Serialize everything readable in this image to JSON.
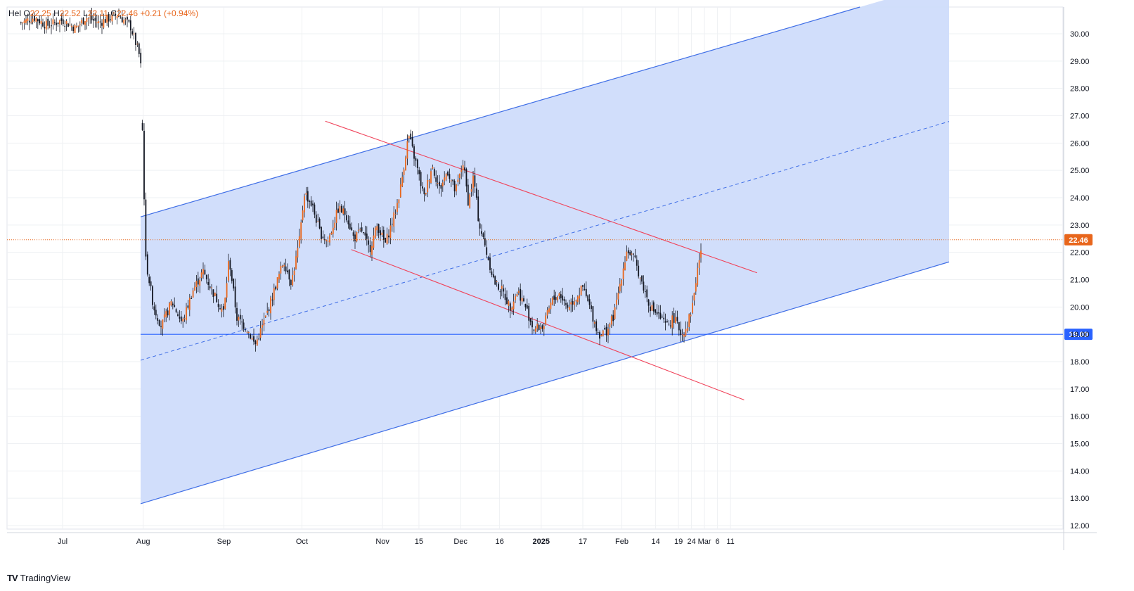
{
  "legend": {
    "symbol": "Hel",
    "open_label": "O",
    "open_value": "22.25",
    "high_label": "H",
    "high_value": "22.52",
    "low_label": "L",
    "low_value": "22.11",
    "close_label": "C",
    "close_value": "22.46",
    "change": "+0.21 (+0.94%)"
  },
  "branding": {
    "name": "TradingView",
    "logo_text": "TV"
  },
  "colors": {
    "up": "#e8661c",
    "down": "#131722",
    "channel_fill": "#cfdcfb",
    "channel_line": "#3f6ee6",
    "wedge_line": "#f0435a",
    "grid": "#eef0f3",
    "last_price": "#e8661c",
    "support_badge": "#2962ff"
  },
  "price_labels": {
    "last_price": "22.46",
    "support": "19.00"
  },
  "chart_data": {
    "type": "candlestick",
    "y_axis": {
      "min": 12,
      "max": 30,
      "ticks": [
        "30.00",
        "29.00",
        "28.00",
        "27.00",
        "26.00",
        "25.00",
        "24.00",
        "23.00",
        "22.00",
        "21.00",
        "20.00",
        "19.00",
        "18.00",
        "17.00",
        "16.00",
        "15.00",
        "14.00",
        "13.00",
        "12.00"
      ]
    },
    "x_axis": {
      "ticks": [
        {
          "label": "Jul",
          "day": 1
        },
        {
          "label": "Aug",
          "day": 32
        },
        {
          "label": "Sep",
          "day": 63
        },
        {
          "label": "Oct",
          "day": 93
        },
        {
          "label": "Nov",
          "day": 124
        },
        {
          "label": "15",
          "day": 138
        },
        {
          "label": "Dec",
          "day": 154
        },
        {
          "label": "16",
          "day": 169
        },
        {
          "label": "2025",
          "day": 185,
          "bold": true
        },
        {
          "label": "17",
          "day": 201
        },
        {
          "label": "Feb",
          "day": 216
        },
        {
          "label": "14",
          "day": 229
        },
        {
          "label": "19",
          "day": 234,
          "offset": true
        },
        {
          "label": "24",
          "day": 239,
          "offset": true
        },
        {
          "label": "Mar",
          "day": 244,
          "offset": true
        },
        {
          "label": "6",
          "day": 249,
          "offset": true
        },
        {
          "label": "11",
          "day": 254,
          "offset": true
        }
      ]
    },
    "last_price": 22.46,
    "support_level": 19.0,
    "price_path": [
      [
        "2024-06-15",
        30.4
      ],
      [
        "2024-06-20",
        30.6
      ],
      [
        "2024-06-25",
        30.3
      ],
      [
        "2024-07-01",
        30.5
      ],
      [
        "2024-07-06",
        30.2
      ],
      [
        "2024-07-10",
        30.6
      ],
      [
        "2024-07-15",
        30.4
      ],
      [
        "2024-07-22",
        30.7
      ],
      [
        "2024-07-27",
        30.3
      ],
      [
        "2024-07-30",
        29.4
      ],
      [
        "2024-07-31",
        29.0
      ],
      [
        "2024-08-02",
        21.7
      ],
      [
        "2024-08-05",
        20.0
      ],
      [
        "2024-08-08",
        19.3
      ],
      [
        "2024-08-12",
        20.2
      ],
      [
        "2024-08-16",
        19.4
      ],
      [
        "2024-08-20",
        20.6
      ],
      [
        "2024-08-24",
        21.3
      ],
      [
        "2024-08-28",
        20.5
      ],
      [
        "2024-09-01",
        19.8
      ],
      [
        "2024-09-03",
        21.8
      ],
      [
        "2024-09-06",
        19.6
      ],
      [
        "2024-09-10",
        19.2
      ],
      [
        "2024-09-13",
        18.6
      ],
      [
        "2024-09-17",
        19.6
      ],
      [
        "2024-09-21",
        20.8
      ],
      [
        "2024-09-24",
        21.7
      ],
      [
        "2024-09-27",
        20.9
      ],
      [
        "2024-09-30",
        22.4
      ],
      [
        "2024-10-02",
        24.2
      ],
      [
        "2024-10-05",
        23.7
      ],
      [
        "2024-10-08",
        22.7
      ],
      [
        "2024-10-11",
        22.4
      ],
      [
        "2024-10-15",
        23.6
      ],
      [
        "2024-10-18",
        23.4
      ],
      [
        "2024-10-21",
        22.5
      ],
      [
        "2024-10-24",
        22.8
      ],
      [
        "2024-10-27",
        22.1
      ],
      [
        "2024-10-30",
        23.0
      ],
      [
        "2024-11-02",
        22.3
      ],
      [
        "2024-11-06",
        23.5
      ],
      [
        "2024-11-08",
        24.4
      ],
      [
        "2024-11-11",
        26.3
      ],
      [
        "2024-11-14",
        25.2
      ],
      [
        "2024-11-17",
        24.0
      ],
      [
        "2024-11-20",
        25.2
      ],
      [
        "2024-11-23",
        24.3
      ],
      [
        "2024-11-26",
        25.0
      ],
      [
        "2024-11-29",
        24.2
      ],
      [
        "2024-12-02",
        25.3
      ],
      [
        "2024-12-04",
        23.8
      ],
      [
        "2024-12-06",
        24.8
      ],
      [
        "2024-12-08",
        23.1
      ],
      [
        "2024-12-11",
        22.0
      ],
      [
        "2024-12-14",
        20.9
      ],
      [
        "2024-12-17",
        20.6
      ],
      [
        "2024-12-20",
        20.0
      ],
      [
        "2024-12-23",
        20.6
      ],
      [
        "2024-12-26",
        20.0
      ],
      [
        "2024-12-29",
        19.2
      ],
      [
        "2025-01-02",
        19.3
      ],
      [
        "2025-01-05",
        20.2
      ],
      [
        "2025-01-08",
        20.5
      ],
      [
        "2025-01-11",
        20.0
      ],
      [
        "2025-01-14",
        20.3
      ],
      [
        "2025-01-17",
        20.7
      ],
      [
        "2025-01-20",
        19.9
      ],
      [
        "2025-01-23",
        19.0
      ],
      [
        "2025-01-26",
        19.1
      ],
      [
        "2025-01-29",
        19.7
      ],
      [
        "2025-02-01",
        21.2
      ],
      [
        "2025-02-03",
        22.1
      ],
      [
        "2025-02-06",
        21.7
      ],
      [
        "2025-02-09",
        20.8
      ],
      [
        "2025-02-12",
        20.0
      ],
      [
        "2025-02-15",
        19.7
      ],
      [
        "2025-02-18",
        19.3
      ],
      [
        "2025-02-21",
        19.6
      ],
      [
        "2025-02-24",
        19.0
      ],
      [
        "2025-02-26",
        19.3
      ],
      [
        "2025-02-28",
        20.0
      ],
      [
        "2025-03-02",
        21.3
      ],
      [
        "2025-03-04",
        22.46
      ]
    ]
  }
}
